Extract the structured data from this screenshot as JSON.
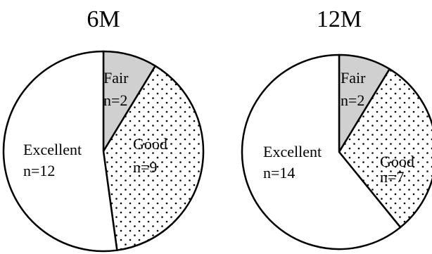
{
  "chart_data": [
    {
      "type": "pie",
      "title": "6M",
      "slices": [
        {
          "label": "Fair",
          "count_label": "n=2",
          "value": 2,
          "fill": "#d0d0d0",
          "pattern": "solid"
        },
        {
          "label": "Good",
          "count_label": "n=9",
          "value": 9,
          "fill": "#ffffff",
          "pattern": "dots"
        },
        {
          "label": "Excellent",
          "count_label": "n=12",
          "value": 12,
          "fill": "#ffffff",
          "pattern": "none"
        }
      ]
    },
    {
      "type": "pie",
      "title": "12M",
      "slices": [
        {
          "label": "Fair",
          "count_label": "n=2",
          "value": 2,
          "fill": "#d0d0d0",
          "pattern": "solid"
        },
        {
          "label": "Good",
          "count_label": "n=7",
          "value": 7,
          "fill": "#ffffff",
          "pattern": "dots"
        },
        {
          "label": "Excellent",
          "count_label": "n=14",
          "value": 14,
          "fill": "#ffffff",
          "pattern": "none"
        }
      ]
    }
  ]
}
